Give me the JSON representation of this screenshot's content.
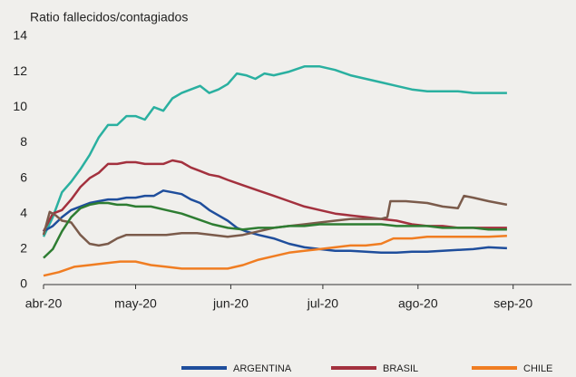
{
  "chart_data": {
    "type": "line",
    "y_label": "Ratio fallecidos/contagiados",
    "xlim": [
      0,
      172
    ],
    "ylim": [
      0,
      14
    ],
    "yticks": [
      0,
      2,
      4,
      6,
      8,
      10,
      12,
      14
    ],
    "xticks": [
      {
        "value": 0,
        "label": "abr-20"
      },
      {
        "value": 30,
        "label": "may-20"
      },
      {
        "value": 61,
        "label": "jun-20"
      },
      {
        "value": 91,
        "label": "jul-20"
      },
      {
        "value": 122,
        "label": "ago-20"
      },
      {
        "value": 153,
        "label": "sep-20"
      }
    ],
    "grid": false,
    "legend": "bottom",
    "series": [
      {
        "color": "#2ab0a0",
        "x": [
          0,
          3,
          6,
          9,
          12,
          15,
          18,
          21,
          24,
          27,
          30,
          33,
          36,
          39,
          42,
          45,
          48,
          51,
          54,
          57,
          60,
          63,
          66,
          69,
          72,
          75,
          80,
          85,
          90,
          95,
          100,
          105,
          110,
          115,
          120,
          125,
          130,
          135,
          140,
          145,
          151
        ],
        "values": [
          2.7,
          3.8,
          5.2,
          5.8,
          6.5,
          7.3,
          8.3,
          9.0,
          9.0,
          9.5,
          9.5,
          9.3,
          10.0,
          9.8,
          10.5,
          10.8,
          11.0,
          11.2,
          10.8,
          11.0,
          11.3,
          11.9,
          11.8,
          11.6,
          11.9,
          11.8,
          12.0,
          12.3,
          12.3,
          12.1,
          11.8,
          11.6,
          11.4,
          11.2,
          11.0,
          10.9,
          10.9,
          10.9,
          10.8,
          10.8,
          10.8
        ]
      },
      {
        "name": "BRASIL",
        "color": "#a3313e",
        "x": [
          0,
          3,
          6,
          9,
          12,
          15,
          18,
          21,
          24,
          27,
          30,
          33,
          36,
          39,
          42,
          45,
          48,
          51,
          54,
          57,
          60,
          65,
          70,
          75,
          80,
          85,
          90,
          95,
          100,
          105,
          110,
          115,
          120,
          125,
          130,
          135,
          140,
          145,
          151
        ],
        "values": [
          3.0,
          4.0,
          4.2,
          4.8,
          5.5,
          6.0,
          6.3,
          6.8,
          6.8,
          6.9,
          6.9,
          6.8,
          6.8,
          6.8,
          7.0,
          6.9,
          6.6,
          6.4,
          6.2,
          6.1,
          5.9,
          5.6,
          5.3,
          5.0,
          4.7,
          4.4,
          4.2,
          4.0,
          3.9,
          3.8,
          3.7,
          3.6,
          3.4,
          3.3,
          3.3,
          3.2,
          3.2,
          3.2,
          3.2
        ]
      },
      {
        "name": "ARGENTINA",
        "color": "#1f4e9c",
        "x": [
          0,
          3,
          6,
          9,
          12,
          15,
          18,
          21,
          24,
          27,
          30,
          33,
          36,
          39,
          42,
          45,
          48,
          51,
          54,
          57,
          60,
          63,
          66,
          70,
          75,
          80,
          85,
          90,
          95,
          100,
          105,
          110,
          115,
          120,
          125,
          130,
          135,
          140,
          145,
          151
        ],
        "values": [
          3.0,
          3.3,
          3.8,
          4.2,
          4.4,
          4.6,
          4.7,
          4.8,
          4.8,
          4.9,
          4.9,
          5.0,
          5.0,
          5.3,
          5.2,
          5.1,
          4.8,
          4.6,
          4.2,
          3.9,
          3.6,
          3.2,
          3.0,
          2.8,
          2.6,
          2.3,
          2.1,
          2.0,
          1.9,
          1.9,
          1.85,
          1.8,
          1.8,
          1.85,
          1.85,
          1.9,
          1.95,
          2.0,
          2.1,
          2.05
        ]
      },
      {
        "color": "#7b5b4b",
        "x": [
          0,
          2,
          4,
          6,
          9,
          12,
          15,
          18,
          21,
          24,
          27,
          30,
          35,
          40,
          45,
          50,
          55,
          60,
          65,
          70,
          75,
          80,
          85,
          90,
          95,
          100,
          105,
          110,
          112,
          113,
          118,
          125,
          130,
          135,
          137,
          140,
          145,
          151
        ],
        "values": [
          2.8,
          4.1,
          3.9,
          3.6,
          3.5,
          2.8,
          2.3,
          2.2,
          2.3,
          2.6,
          2.8,
          2.8,
          2.8,
          2.8,
          2.9,
          2.9,
          2.8,
          2.7,
          2.8,
          3.0,
          3.2,
          3.3,
          3.4,
          3.5,
          3.6,
          3.7,
          3.7,
          3.7,
          3.8,
          4.7,
          4.7,
          4.6,
          4.4,
          4.3,
          5.0,
          4.9,
          4.7,
          4.5
        ]
      },
      {
        "color": "#2e7d32",
        "x": [
          0,
          3,
          6,
          9,
          12,
          15,
          18,
          21,
          24,
          27,
          30,
          35,
          40,
          45,
          50,
          55,
          60,
          65,
          70,
          75,
          80,
          85,
          90,
          95,
          100,
          105,
          110,
          115,
          120,
          125,
          130,
          135,
          140,
          145,
          151
        ],
        "values": [
          1.5,
          2.0,
          3.0,
          3.8,
          4.3,
          4.5,
          4.6,
          4.6,
          4.5,
          4.5,
          4.4,
          4.4,
          4.2,
          4.0,
          3.7,
          3.4,
          3.2,
          3.1,
          3.2,
          3.2,
          3.3,
          3.3,
          3.4,
          3.4,
          3.4,
          3.4,
          3.4,
          3.3,
          3.3,
          3.3,
          3.2,
          3.2,
          3.2,
          3.1,
          3.1
        ]
      },
      {
        "name": "CHILE",
        "color": "#f07d22",
        "x": [
          0,
          5,
          10,
          15,
          20,
          25,
          30,
          35,
          40,
          45,
          50,
          55,
          60,
          65,
          70,
          75,
          80,
          85,
          90,
          95,
          100,
          105,
          110,
          114,
          120,
          125,
          130,
          135,
          140,
          145,
          151
        ],
        "values": [
          0.5,
          0.7,
          1.0,
          1.1,
          1.2,
          1.3,
          1.3,
          1.1,
          1.0,
          0.9,
          0.9,
          0.9,
          0.9,
          1.1,
          1.4,
          1.6,
          1.8,
          1.9,
          2.0,
          2.1,
          2.2,
          2.2,
          2.3,
          2.6,
          2.6,
          2.7,
          2.7,
          2.7,
          2.7,
          2.7,
          2.75
        ]
      }
    ]
  }
}
